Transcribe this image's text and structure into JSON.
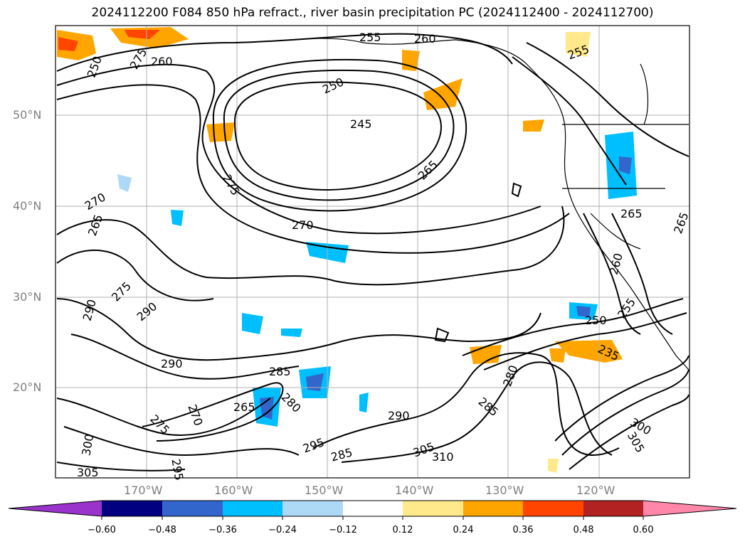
{
  "title": "2024112200 F084 850 hPa refract., river basin precipitation PC (2024112400 - 2024112700)",
  "map": {
    "lat_labels": [
      "50°N",
      "40°N",
      "30°N",
      "20°N"
    ],
    "lon_labels": [
      "170°W",
      "160°W",
      "150°W",
      "140°W",
      "130°W",
      "120°W"
    ],
    "contour_labels": [
      "255",
      "260",
      "250",
      "275",
      "260",
      "250",
      "245",
      "265",
      "275",
      "270",
      "270",
      "265",
      "275",
      "290",
      "290",
      "290",
      "285",
      "265",
      "280",
      "270",
      "275",
      "300",
      "305",
      "295",
      "295",
      "285",
      "290",
      "305",
      "310",
      "280",
      "285",
      "250",
      "255",
      "260",
      "265",
      "265",
      "235",
      "300",
      "305",
      "255"
    ]
  },
  "colorbar": {
    "ticks": [
      "−0.60",
      "−0.48",
      "−0.36",
      "−0.24",
      "−0.12",
      "0.12",
      "0.24",
      "0.36",
      "0.48",
      "0.60"
    ],
    "colors": [
      "#9933cc",
      "#000080",
      "#3366cc",
      "#00bfff",
      "#add8f6",
      "#ffffff",
      "#ffe98a",
      "#ffa500",
      "#ff4500",
      "#b22222",
      "#ff88aa"
    ]
  }
}
